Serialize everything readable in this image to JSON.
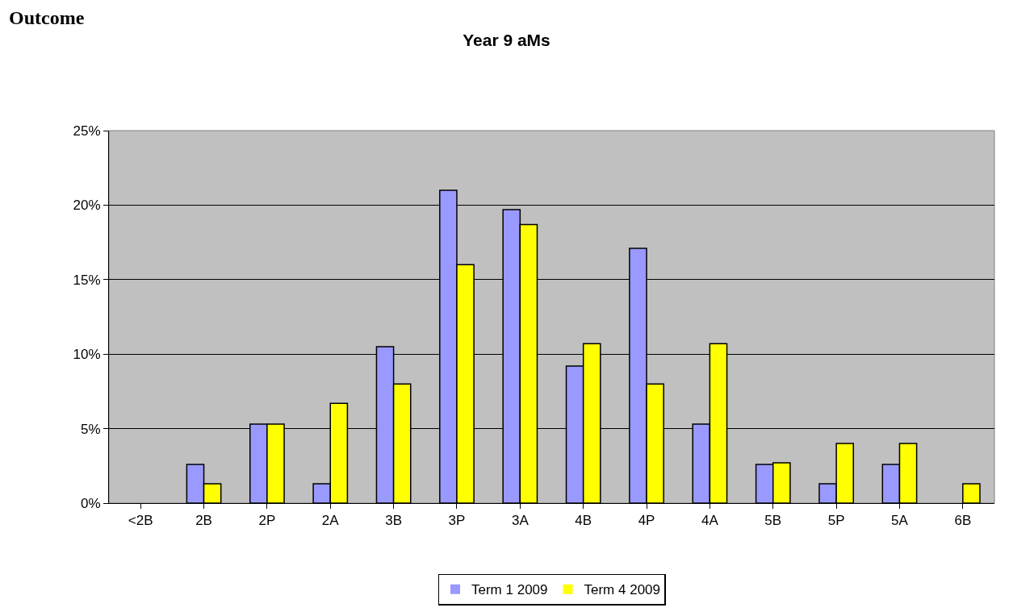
{
  "chart_data": {
    "type": "bar",
    "title": "Year 9 aMs",
    "categories": [
      "<2B",
      "2B",
      "2P",
      "2A",
      "3B",
      "3P",
      "3A",
      "4B",
      "4P",
      "4A",
      "5B",
      "5P",
      "5A",
      "6B"
    ],
    "series": [
      {
        "name": "Term 1 2009",
        "color": "#9999ff",
        "values": [
          0,
          2.6,
          5.3,
          1.3,
          10.5,
          21.0,
          19.7,
          9.2,
          17.1,
          5.3,
          2.6,
          1.3,
          2.6,
          0
        ]
      },
      {
        "name": "Term 4 2009",
        "color": "#ffff00",
        "values": [
          0,
          1.3,
          5.3,
          6.7,
          8.0,
          16.0,
          18.7,
          10.7,
          8.0,
          10.7,
          2.7,
          4.0,
          4.0,
          1.3
        ]
      }
    ],
    "ylim": [
      0,
      25
    ],
    "yticks": [
      {
        "value": 0,
        "label": "0%"
      },
      {
        "value": 5,
        "label": "5%"
      },
      {
        "value": 10,
        "label": "10%"
      },
      {
        "value": 15,
        "label": "15%"
      },
      {
        "value": 20,
        "label": "20%"
      },
      {
        "value": 25,
        "label": "25%"
      }
    ],
    "grid": "y",
    "legend": "bottom",
    "annotations": [
      "Outcome"
    ]
  }
}
